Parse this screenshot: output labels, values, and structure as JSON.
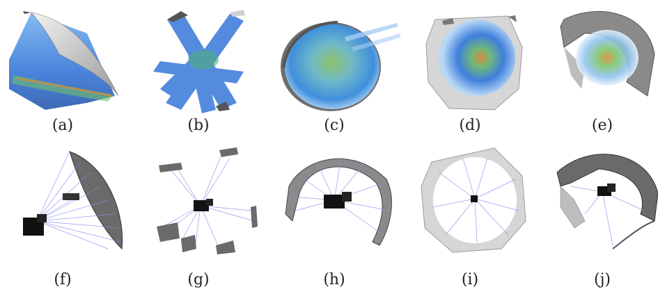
{
  "figure": {
    "row1_labels": [
      "(a)",
      "(b)",
      "(c)",
      "(d)",
      "(e)"
    ],
    "row2_labels": [
      "(f)",
      "(g)",
      "(h)",
      "(i)",
      "(j)"
    ]
  },
  "colors": {
    "voxel_blue": "#2b6fd6",
    "voxel_light": "#8fc4ef",
    "voxel_green": "#7fc46a",
    "voxel_orange": "#d98a3a",
    "surface_gray": "#bdbdbd",
    "mesh_dark": "#4a4a4a",
    "ray_blue": "#8a8ef0",
    "camera_black": "#111111"
  }
}
